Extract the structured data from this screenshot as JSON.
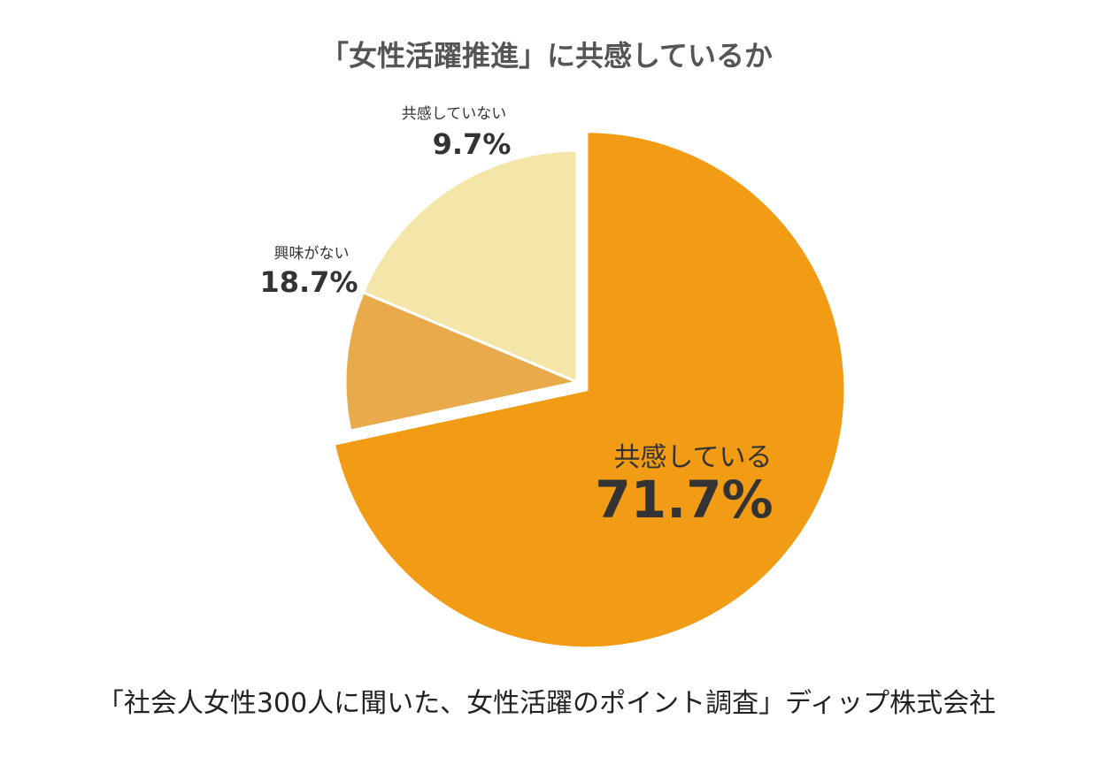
{
  "chart_data": {
    "type": "pie",
    "title": "「女性活躍推進」に共感しているか",
    "categories": [
      "共感している",
      "共感していない",
      "興味がない"
    ],
    "values": [
      71.7,
      9.7,
      18.7
    ],
    "value_labels": [
      "71.7%",
      "9.7%",
      "18.7%"
    ],
    "colors": [
      "#F29C16",
      "#E8AA4B",
      "#F3E6A8"
    ],
    "exploded": [
      "共感している"
    ],
    "legend": "none",
    "direction": "clockwise from top"
  },
  "source": "「社会人女性300人に聞いた、女性活躍のポイント調査」ディップ株式会社"
}
